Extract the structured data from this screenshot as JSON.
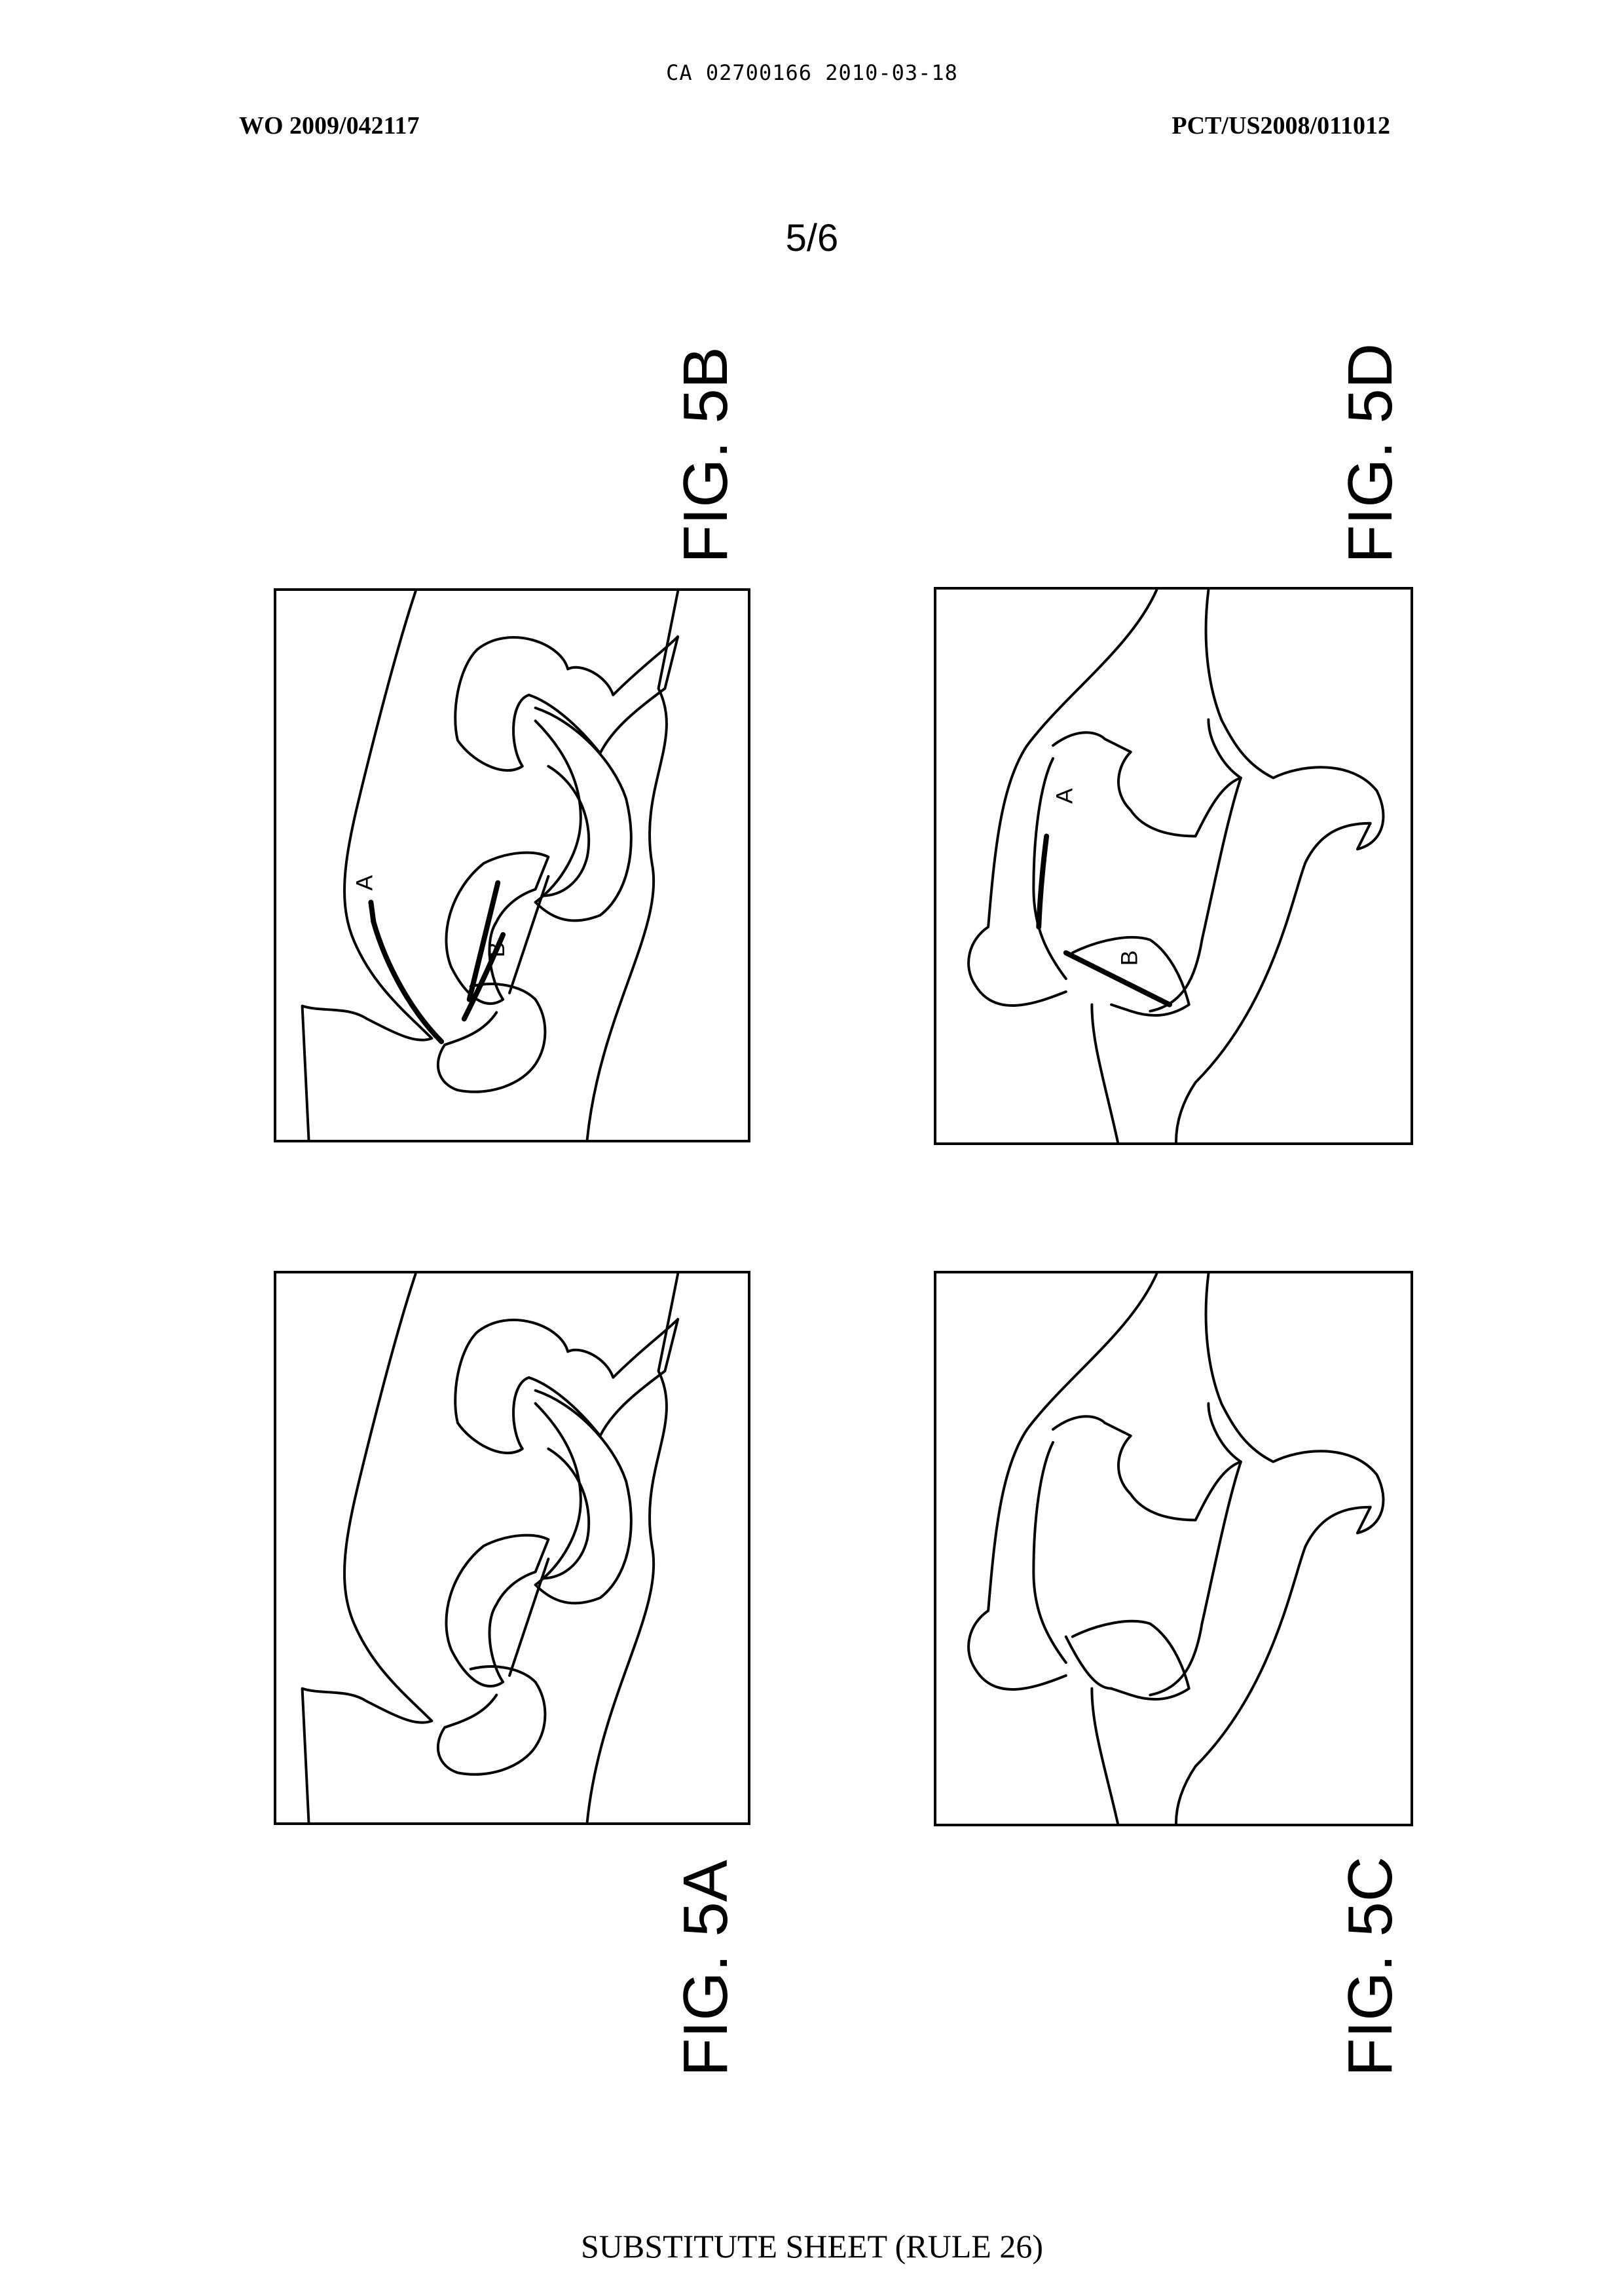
{
  "header": {
    "doc_id": "CA 02700166 2010-03-18",
    "publication": "WO 2009/042117",
    "application": "PCT/US2008/011012"
  },
  "sheet": {
    "number": "5/6"
  },
  "figures": {
    "fig5a": {
      "label": "FIG. 5A"
    },
    "fig5b": {
      "label": "FIG. 5B",
      "marker_a": "A",
      "marker_b": "B"
    },
    "fig5c": {
      "label": "FIG. 5C"
    },
    "fig5d": {
      "label": "FIG. 5D",
      "marker_a": "A",
      "marker_b": "B"
    }
  },
  "footer": {
    "text": "SUBSTITUTE SHEET (RULE 26)"
  }
}
